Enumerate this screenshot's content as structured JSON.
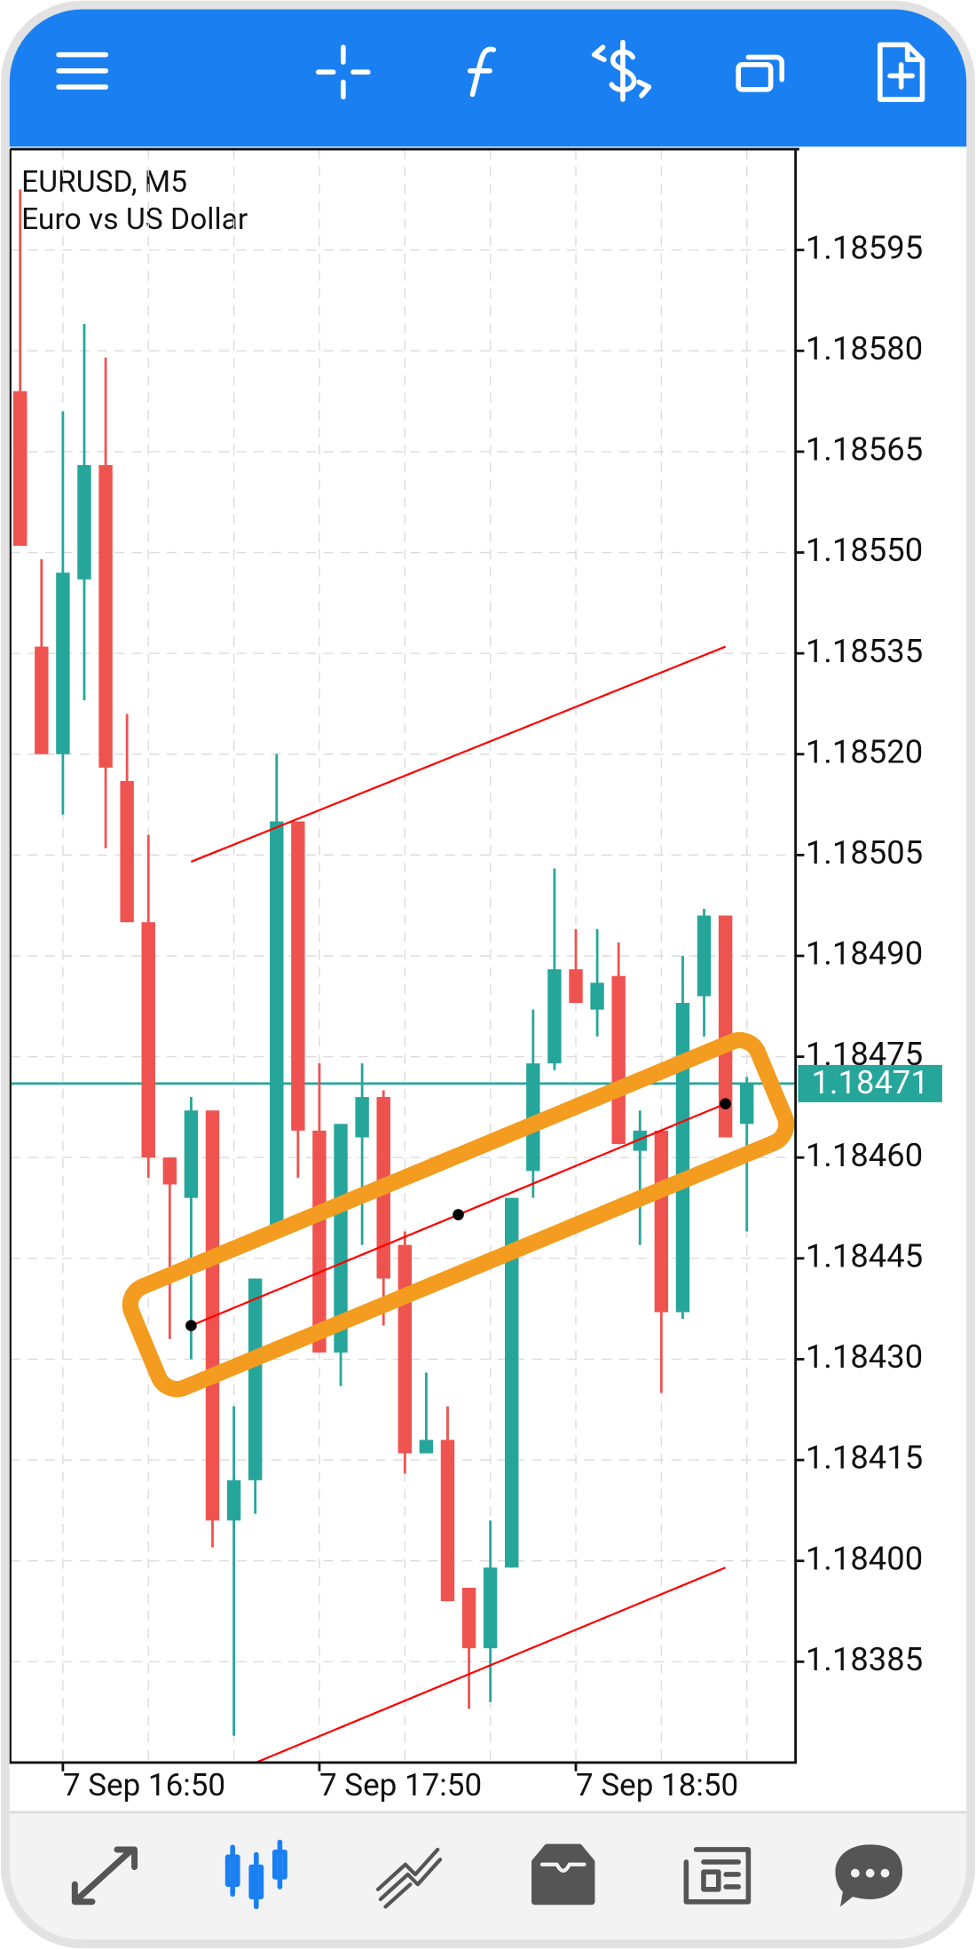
{
  "chart_data": {
    "type": "candlestick",
    "title": "EURUSD, M5",
    "subtitle": "Euro vs US Dollar",
    "categories": [
      null,
      null,
      "7 Sep 16:50",
      null,
      null,
      null,
      null,
      null,
      null,
      null,
      null,
      null,
      null,
      null,
      "7 Sep 17:50",
      null,
      null,
      null,
      null,
      null,
      null,
      null,
      null,
      null,
      null,
      null,
      "7 Sep 18:50",
      null,
      null,
      null,
      null,
      null,
      null,
      null,
      null
    ],
    "open": [
      1.18574,
      1.18536,
      1.1852,
      1.18546,
      1.18563,
      1.18516,
      1.18495,
      1.1846,
      1.18454,
      1.18467,
      1.18406,
      1.18412,
      1.1845,
      1.1851,
      1.18464,
      1.18431,
      1.18463,
      1.18469,
      1.18447,
      1.18416,
      1.18418,
      1.18396,
      1.18387,
      1.18399,
      1.18458,
      1.18474,
      1.18488,
      1.18482,
      1.18487,
      1.18461,
      1.18464,
      1.18437,
      1.18484,
      1.18496,
      1.18465
    ],
    "high": [
      1.18604,
      1.18549,
      1.18571,
      1.18584,
      1.18579,
      1.18526,
      1.18508,
      1.1846,
      1.18469,
      1.18467,
      1.18423,
      1.18442,
      1.1852,
      1.1851,
      1.18474,
      1.18465,
      1.18474,
      1.1847,
      1.18449,
      1.18428,
      1.18423,
      1.18396,
      1.18406,
      1.18454,
      1.18482,
      1.18503,
      1.18494,
      1.18494,
      1.18492,
      1.18467,
      1.18464,
      1.1849,
      1.18497,
      1.18496,
      1.18472
    ],
    "low": [
      1.18551,
      1.1852,
      1.18511,
      1.18528,
      1.18506,
      1.18495,
      1.18457,
      1.18433,
      1.1843,
      1.18402,
      1.18374,
      1.18407,
      1.1845,
      1.18457,
      1.18431,
      1.18426,
      1.18447,
      1.18435,
      1.18413,
      1.18416,
      1.18394,
      1.18378,
      1.18379,
      1.18399,
      1.18454,
      1.18473,
      1.18483,
      1.18478,
      1.18462,
      1.18447,
      1.18425,
      1.18436,
      1.18478,
      1.18463,
      1.18449
    ],
    "close": [
      1.18551,
      1.1852,
      1.18547,
      1.18563,
      1.18518,
      1.18495,
      1.1846,
      1.18456,
      1.18467,
      1.18406,
      1.18412,
      1.18442,
      1.1851,
      1.18464,
      1.18431,
      1.18465,
      1.18469,
      1.18442,
      1.18416,
      1.18418,
      1.18394,
      1.18387,
      1.18399,
      1.18454,
      1.18474,
      1.18488,
      1.18483,
      1.18486,
      1.18462,
      1.18464,
      1.18437,
      1.18483,
      1.18496,
      1.18463,
      1.18471
    ],
    "up_color": "#26a69a",
    "down_color": "#ef5350",
    "current_price": 1.18471,
    "current_price_color": "#26a69a",
    "channel": {
      "x": [
        8,
        33
      ],
      "center": [
        1.18435,
        1.18468
      ],
      "upper": [
        1.18504,
        1.18536
      ],
      "lower": [
        1.18366,
        1.18399
      ],
      "color": "#ff0000"
    },
    "ylim": [
      1.1837,
      1.1861
    ],
    "yticks": [
      1.18385,
      {
        "value": 1.184,
        "label": "1.18400"
      },
      1.18415,
      {
        "value": 1.1843,
        "label": "1.18430"
      },
      1.18445,
      {
        "value": 1.1846,
        "label": "1.18460"
      },
      1.18475,
      {
        "value": 1.1849,
        "label": "1.18490"
      },
      1.18505,
      {
        "value": 1.1852,
        "label": "1.18520"
      },
      1.18535,
      {
        "value": 1.1855,
        "label": "1.18550"
      },
      1.18565,
      {
        "value": 1.1858,
        "label": "1.18580"
      },
      1.18595
    ],
    "grid": true
  }
}
